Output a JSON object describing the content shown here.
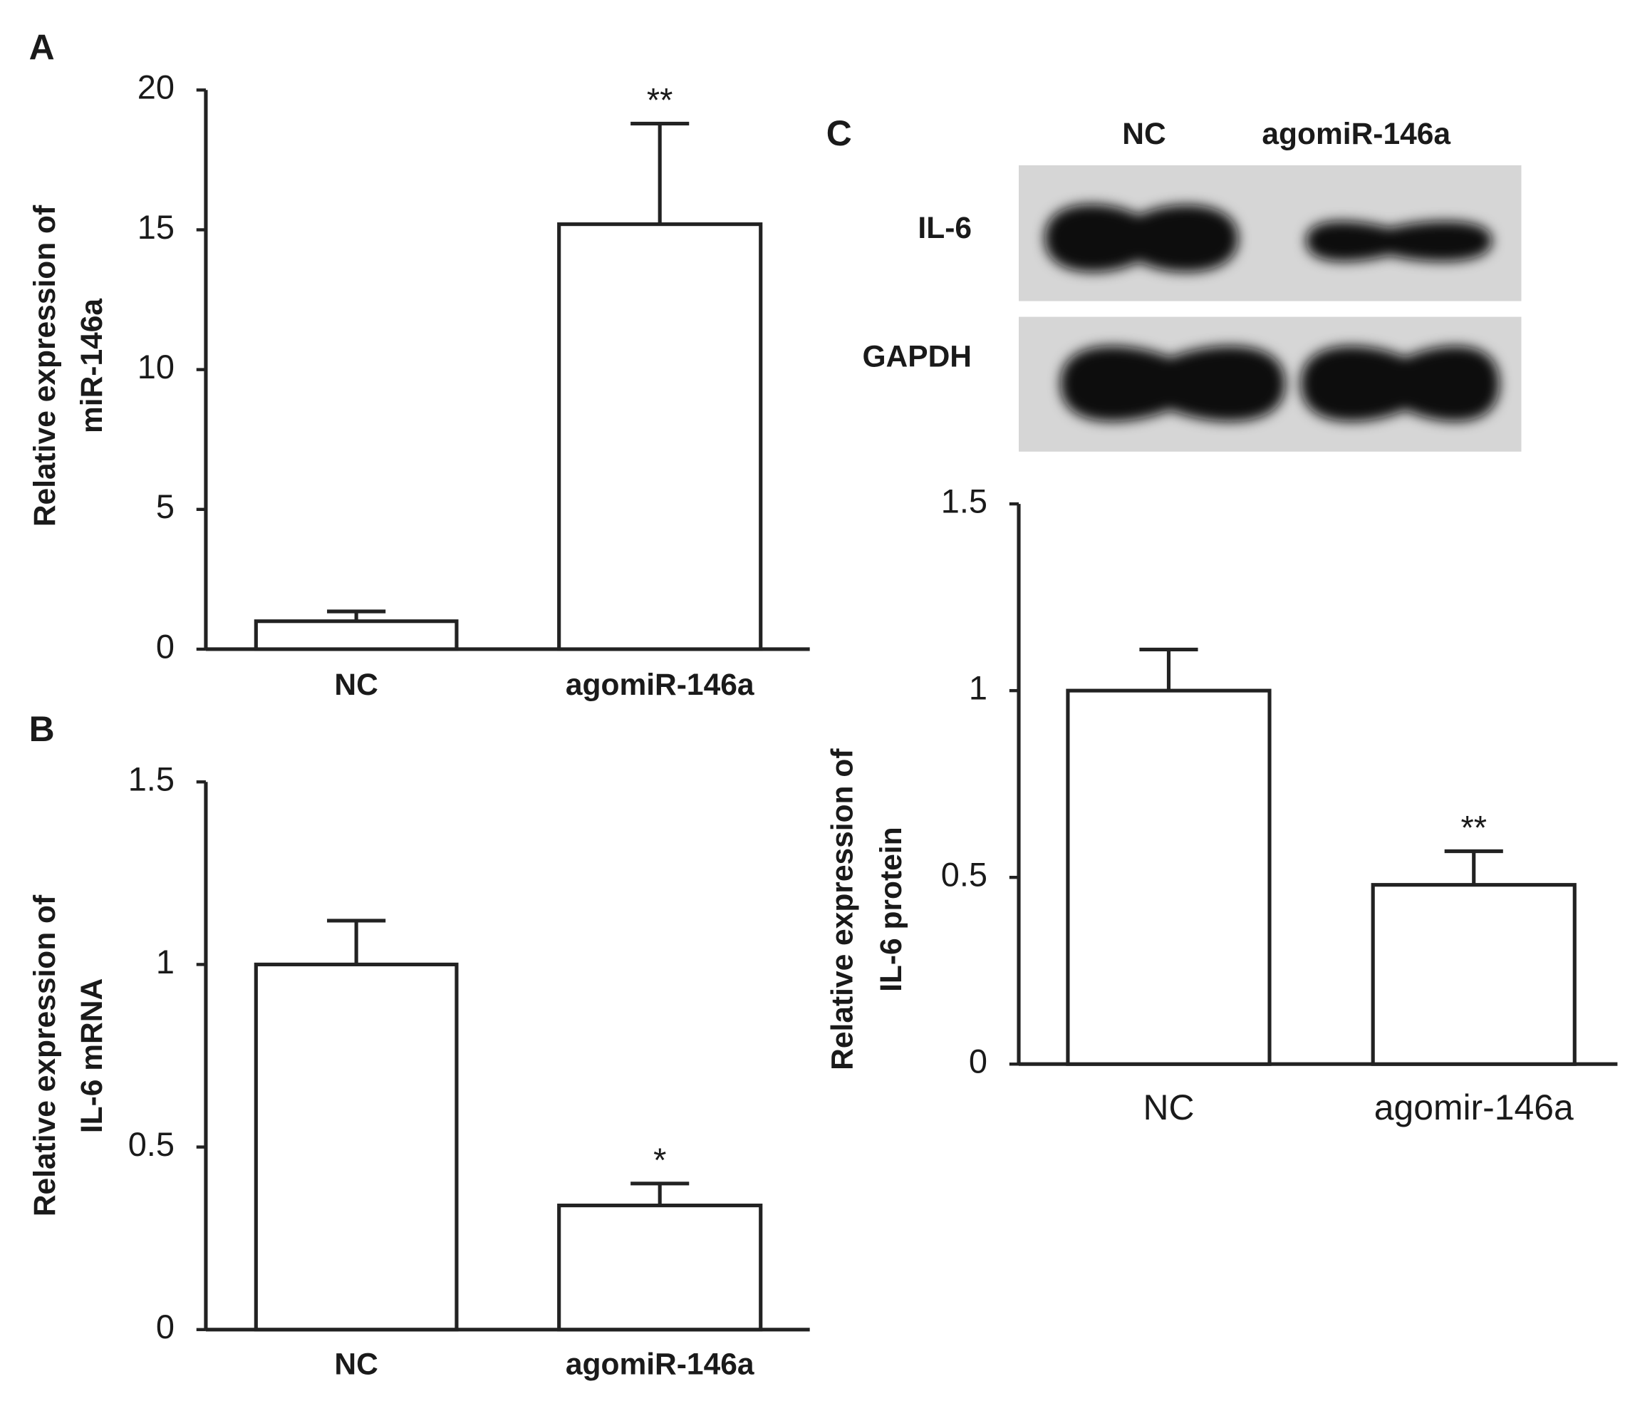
{
  "chart_data": [
    {
      "type": "bar",
      "panel": "A",
      "ylabel": [
        "Relative expression of",
        "miR-146a"
      ],
      "categories": [
        "NC",
        "agomiR-146a"
      ],
      "values": [
        1.0,
        15.2
      ],
      "errors": [
        0.35,
        3.6
      ],
      "significance": [
        null,
        "**"
      ],
      "color": "#ffffff",
      "ylim": [
        0,
        20
      ],
      "yticks": [
        0,
        5,
        10,
        15,
        20
      ]
    },
    {
      "type": "bar",
      "panel": "B",
      "ylabel": [
        "Relative expression of",
        "IL-6 mRNA"
      ],
      "categories": [
        "NC",
        "agomiR-146a"
      ],
      "values": [
        1.0,
        0.34
      ],
      "errors": [
        0.12,
        0.06
      ],
      "significance": [
        null,
        "*"
      ],
      "color": "#ffffff",
      "ylim": [
        0,
        1.5
      ],
      "yticks": [
        0,
        0.5,
        1,
        1.5
      ]
    },
    {
      "type": "bar",
      "panel": "C",
      "blot": {
        "lanes": [
          "NC",
          "agomiR-146a"
        ],
        "bands": [
          "IL-6",
          "GAPDH"
        ]
      },
      "ylabel": [
        "Relative expression of",
        "IL-6 protein"
      ],
      "categories": [
        "NC",
        "agomir-146a"
      ],
      "values": [
        1.0,
        0.48
      ],
      "errors": [
        0.11,
        0.09
      ],
      "significance": [
        null,
        "**"
      ],
      "color": "#ffffff",
      "ylim": [
        0,
        1.5
      ],
      "yticks": [
        0,
        0.5,
        1,
        1.5
      ]
    }
  ]
}
